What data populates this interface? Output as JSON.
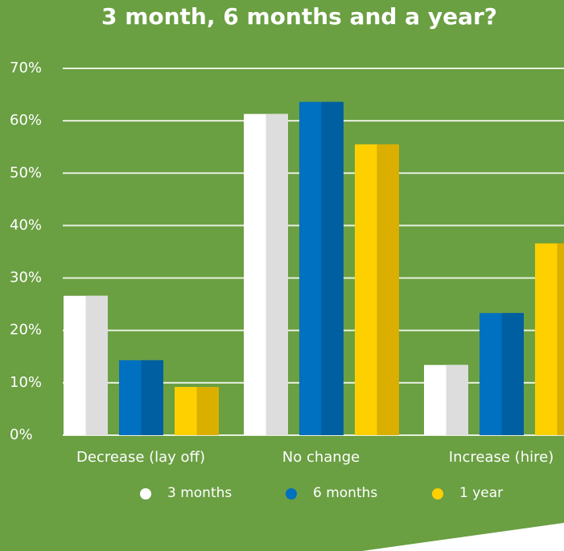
{
  "chart_data": {
    "type": "bar",
    "title": "3 month, 6 months and a year?",
    "categories": [
      "Decrease (lay off)",
      "No change",
      "Increase (hire)"
    ],
    "series": [
      {
        "name": "3 months",
        "color": "#ffffff",
        "values": [
          26.6,
          61.3,
          13.4
        ]
      },
      {
        "name": "6 months",
        "color": "#0070c0",
        "values": [
          14.3,
          63.6,
          23.3
        ]
      },
      {
        "name": "1 year",
        "color": "#ffd000",
        "values": [
          9.2,
          55.5,
          36.6
        ]
      }
    ],
    "ylim": [
      0,
      70
    ],
    "yticks": [
      {
        "value": 0,
        "label": "0%"
      },
      {
        "value": 10,
        "label": "10%"
      },
      {
        "value": 20,
        "label": "20%"
      },
      {
        "value": 30,
        "label": "30%"
      },
      {
        "value": 40,
        "label": "40%"
      },
      {
        "value": 50,
        "label": "50%"
      },
      {
        "value": 60,
        "label": "60%"
      },
      {
        "value": 70,
        "label": "70%"
      }
    ],
    "grid": true
  }
}
